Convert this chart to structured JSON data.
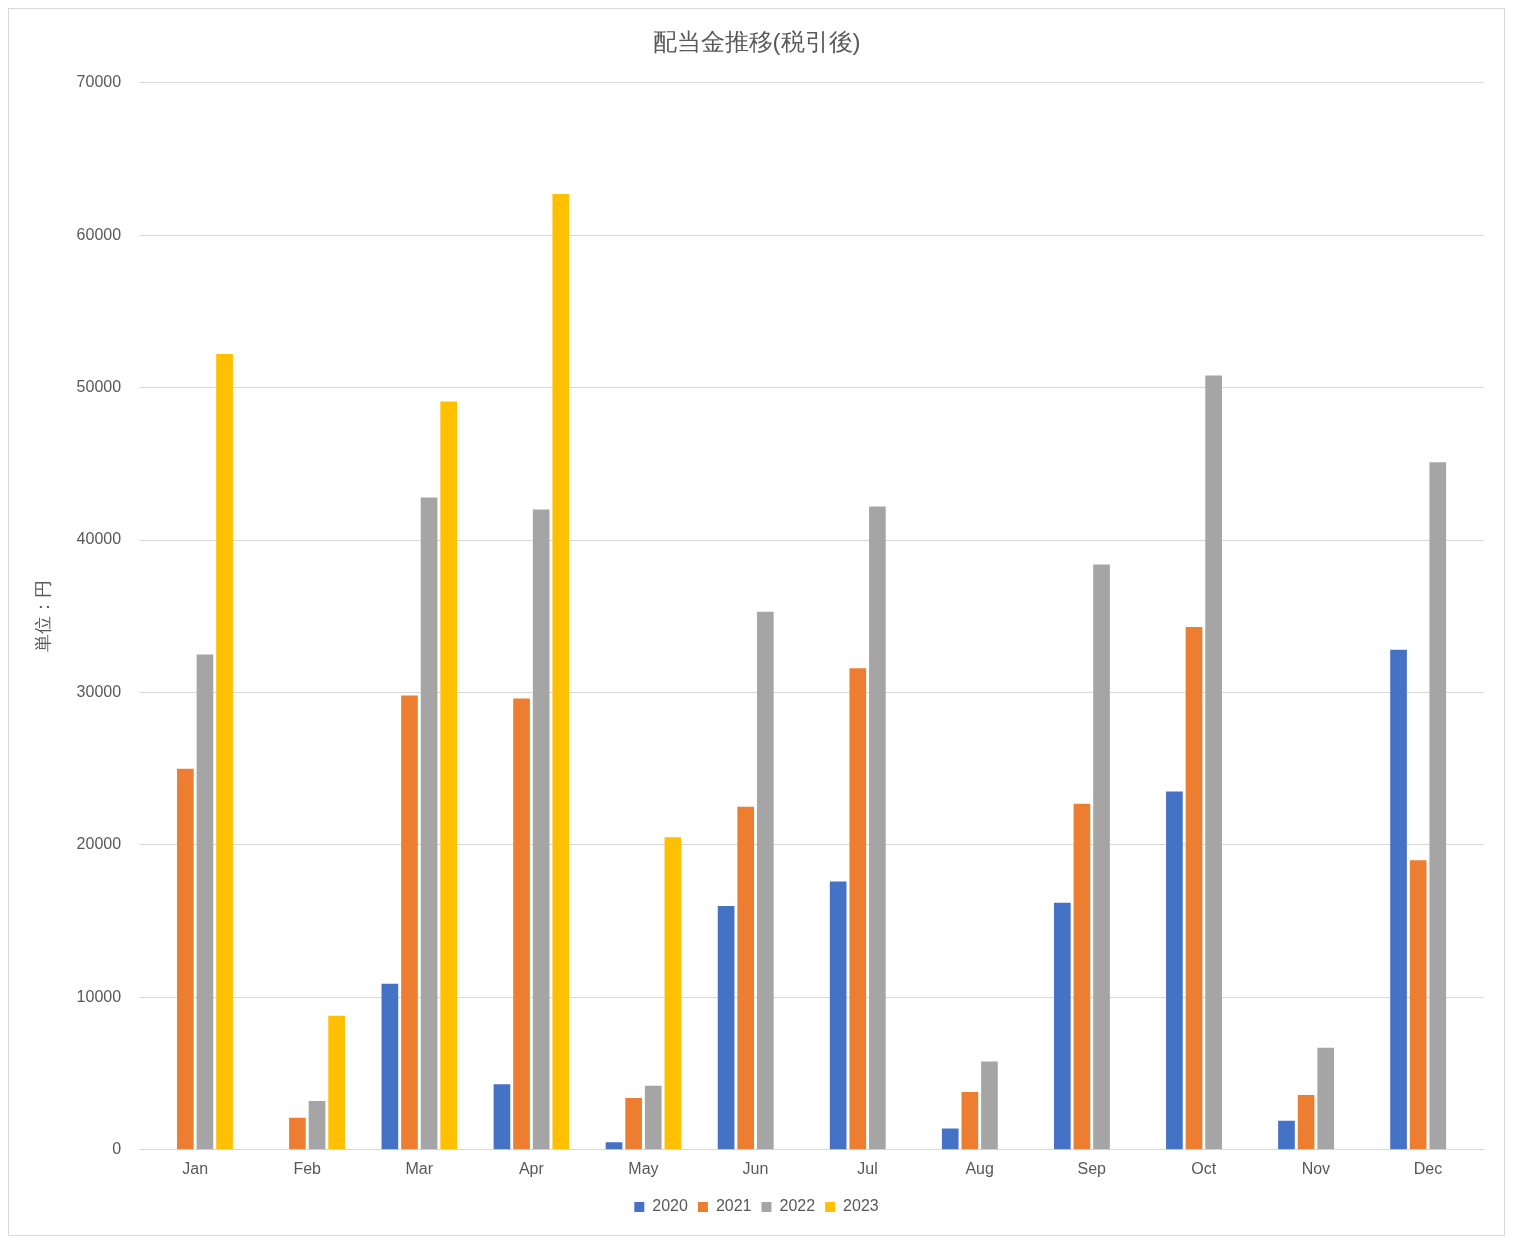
{
  "chart_data": {
    "type": "bar",
    "title": "配当金推移(税引後)",
    "ylabel": "単位：円",
    "categories": [
      "Jan",
      "Feb",
      "Mar",
      "Apr",
      "May",
      "Jun",
      "Jul",
      "Aug",
      "Sep",
      "Oct",
      "Nov",
      "Dec"
    ],
    "series": [
      {
        "name": "2020",
        "color": "#4472c4",
        "values": [
          null,
          null,
          10900,
          4300,
          500,
          16000,
          17600,
          1400,
          16200,
          23500,
          1900,
          32800
        ]
      },
      {
        "name": "2021",
        "color": "#ed7d31",
        "values": [
          25000,
          2100,
          29800,
          29600,
          3400,
          22500,
          31600,
          3800,
          22700,
          34300,
          3600,
          19000
        ]
      },
      {
        "name": "2022",
        "color": "#a5a5a5",
        "values": [
          32500,
          3200,
          42800,
          42000,
          4200,
          35300,
          42200,
          5800,
          38400,
          50800,
          6700,
          45100
        ]
      },
      {
        "name": "2023",
        "color": "#ffc000",
        "values": [
          52200,
          8800,
          49100,
          62700,
          20500,
          null,
          null,
          null,
          null,
          null,
          null,
          null
        ]
      }
    ],
    "ylim": [
      0,
      70000
    ],
    "yticks": [
      0,
      10000,
      20000,
      30000,
      40000,
      50000,
      60000,
      70000
    ],
    "grid": "y",
    "legend": "bottom"
  }
}
